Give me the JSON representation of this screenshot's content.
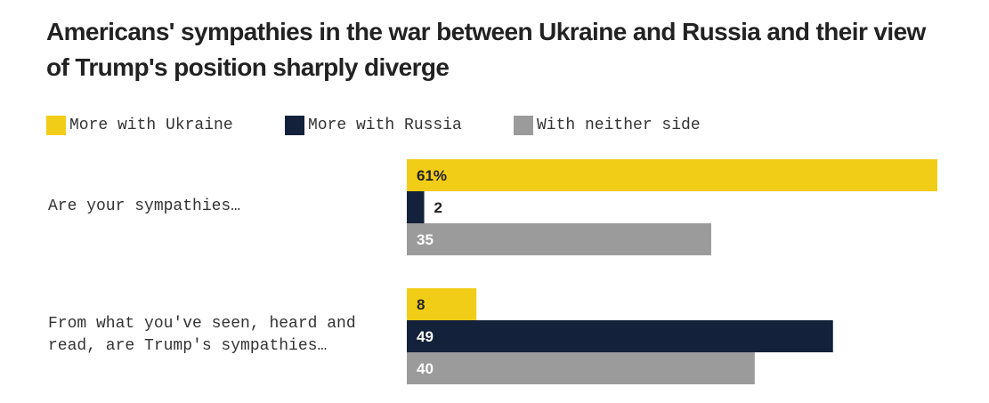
{
  "title": "Americans' sympathies in the war between Ukraine and Russia and their view of Trump's position sharply diverge",
  "colors": {
    "ukraine": "#f2cd17",
    "russia": "#13213a",
    "neither": "#9b9b9b",
    "text_dark": "#222222",
    "text_light": "#ffffff"
  },
  "chart_data": {
    "type": "bar",
    "orientation": "horizontal",
    "grouped": true,
    "title": "Americans' sympathies in the war between Ukraine and Russia and their view of Trump's position sharply diverge",
    "legend_position": "top-left",
    "grid": false,
    "xlim": [
      0,
      61
    ],
    "categories": [
      "Are your sympathies…",
      "From what you've seen, heard and\nread, are Trump's sympathies…"
    ],
    "series": [
      {
        "name": "More with Ukraine",
        "values": [
          61,
          8
        ],
        "labels": [
          "61%",
          "8"
        ]
      },
      {
        "name": "More with Russia",
        "values": [
          2,
          49
        ],
        "labels": [
          "2",
          "49"
        ]
      },
      {
        "name": "With neither side",
        "values": [
          35,
          40
        ],
        "labels": [
          "35",
          "40"
        ]
      }
    ]
  }
}
